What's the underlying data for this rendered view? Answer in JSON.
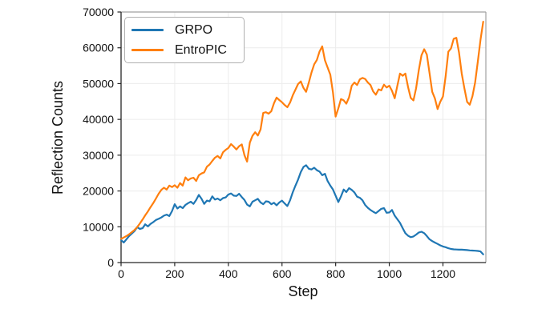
{
  "chart_data": {
    "type": "line",
    "title": "",
    "xlabel": "Step",
    "ylabel": "Reflection Counts",
    "xlim": [
      0,
      1360
    ],
    "ylim": [
      0,
      70000
    ],
    "xticks": [
      0,
      200,
      400,
      600,
      800,
      1000,
      1200
    ],
    "yticks": [
      0,
      10000,
      20000,
      30000,
      40000,
      50000,
      60000,
      70000
    ],
    "grid": true,
    "legend_position": "upper-left",
    "x_start": 0,
    "x_interval": 10,
    "series": [
      {
        "name": "GRPO",
        "color": "#1f77b4",
        "values": [
          6300,
          5600,
          6500,
          7400,
          8100,
          8800,
          9900,
          9400,
          9600,
          10700,
          10100,
          10800,
          11300,
          11900,
          12200,
          12600,
          13100,
          13400,
          13000,
          14400,
          16300,
          15100,
          15700,
          15200,
          16100,
          16600,
          17000,
          16400,
          17500,
          18900,
          17800,
          16400,
          17300,
          17100,
          18500,
          17600,
          17900,
          17400,
          18000,
          18200,
          19000,
          19300,
          18700,
          18600,
          19200,
          18300,
          17500,
          16200,
          15700,
          17000,
          17400,
          17800,
          16800,
          16300,
          17100,
          17000,
          16300,
          16700,
          16000,
          16800,
          17300,
          16500,
          15800,
          17400,
          19600,
          21500,
          23200,
          25300,
          26700,
          27200,
          26200,
          26000,
          26500,
          25800,
          25400,
          24400,
          24800,
          22800,
          21500,
          20400,
          18700,
          16900,
          18500,
          20400,
          19700,
          20800,
          20300,
          19600,
          18400,
          18100,
          17400,
          16100,
          15300,
          14700,
          14200,
          13800,
          14400,
          15000,
          15200,
          13900,
          14000,
          14700,
          13100,
          12100,
          11100,
          9600,
          8200,
          7500,
          7100,
          7300,
          7800,
          8400,
          8600,
          8200,
          7400,
          6500,
          6000,
          5600,
          5200,
          4800,
          4500,
          4300,
          4000,
          3800,
          3700,
          3650,
          3600,
          3600,
          3550,
          3500,
          3400,
          3350,
          3300,
          3250,
          3100,
          2300
        ]
      },
      {
        "name": "EntroPIC",
        "color": "#ff7f0e",
        "values": [
          6600,
          7000,
          7400,
          7900,
          8500,
          9100,
          9900,
          10900,
          12000,
          13200,
          14300,
          15500,
          16600,
          17900,
          19200,
          20300,
          20900,
          20400,
          21500,
          21100,
          21600,
          20900,
          22200,
          21500,
          23800,
          23000,
          23500,
          23700,
          22800,
          24400,
          24900,
          25200,
          26800,
          27400,
          28400,
          29300,
          29800,
          29100,
          30800,
          31500,
          32000,
          33100,
          32400,
          31600,
          32500,
          33000,
          30000,
          28200,
          33500,
          35400,
          36400,
          35500,
          37200,
          41800,
          42000,
          41600,
          42300,
          44500,
          46100,
          45400,
          44800,
          44000,
          43400,
          44700,
          46700,
          48300,
          49900,
          50600,
          48800,
          47700,
          50300,
          53100,
          55400,
          56600,
          59000,
          60400,
          56500,
          54500,
          52500,
          47500,
          40800,
          43100,
          45700,
          45300,
          44400,
          46200,
          49400,
          50300,
          49600,
          51200,
          51600,
          51300,
          50300,
          49600,
          47800,
          46900,
          48400,
          48100,
          49700,
          48900,
          49400,
          48000,
          45900,
          49400,
          52800,
          52200,
          52800,
          49000,
          46000,
          45300,
          48700,
          53800,
          57900,
          59600,
          58100,
          53000,
          47700,
          45900,
          42900,
          44900,
          46400,
          52000,
          58900,
          59800,
          62500,
          62800,
          58700,
          52800,
          48700,
          44900,
          44100,
          46500,
          50300,
          56200,
          62200,
          67300
        ]
      }
    ]
  }
}
